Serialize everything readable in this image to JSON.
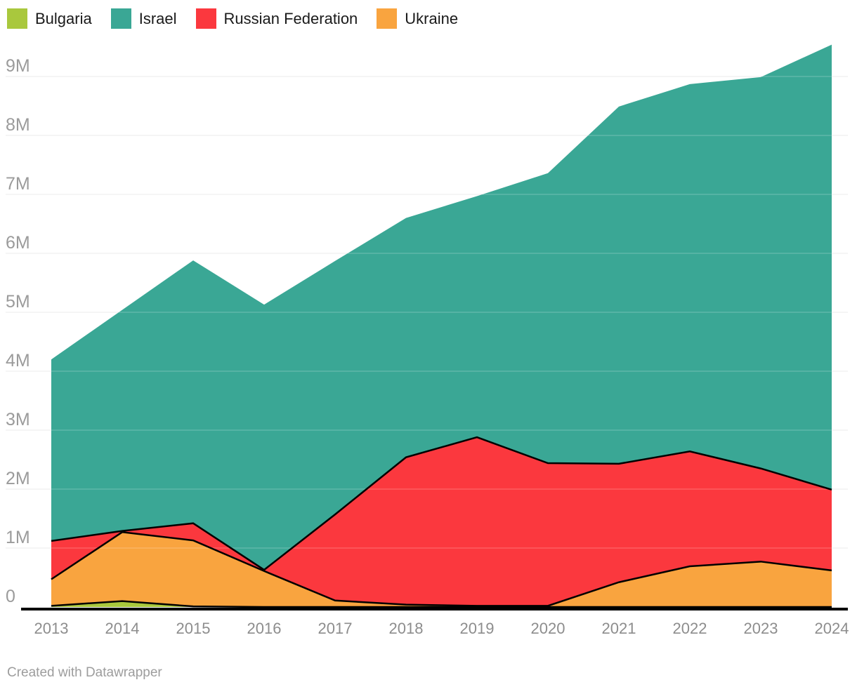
{
  "page": {
    "background": "#ffffff"
  },
  "legend": {
    "items": [
      {
        "label": "Bulgaria",
        "color": "#a9c83d"
      },
      {
        "label": "Israel",
        "color": "#3aa795"
      },
      {
        "label": "Russian Federation",
        "color": "#fb383e"
      },
      {
        "label": "Ukraine",
        "color": "#f9a43f"
      }
    ]
  },
  "footer": {
    "text": "Created with Datawrapper"
  },
  "chart_data": {
    "type": "area",
    "stacked": true,
    "unit": "M",
    "x": [
      2013,
      2014,
      2015,
      2016,
      2017,
      2018,
      2019,
      2020,
      2021,
      2022,
      2023,
      2024
    ],
    "x_tick_labels": [
      "2013",
      "2014",
      "2015",
      "2016",
      "2017",
      "2018",
      "2019",
      "2020",
      "2021",
      "2022",
      "2023",
      "2024"
    ],
    "series": [
      {
        "name": "Bulgaria",
        "color": "#a9c83d",
        "outlined": true,
        "values": [
          0.02,
          0.1,
          0.01,
          0.0,
          0.0,
          0.0,
          0.0,
          0.0,
          0.0,
          0.0,
          0.0,
          0.0
        ]
      },
      {
        "name": "Ukraine",
        "color": "#f9a43f",
        "outlined": true,
        "values": [
          0.45,
          1.17,
          1.12,
          0.61,
          0.11,
          0.04,
          0.02,
          0.02,
          0.42,
          0.69,
          0.77,
          0.62
        ]
      },
      {
        "name": "Russian Federation",
        "color": "#fb383e",
        "outlined": true,
        "values": [
          0.65,
          0.02,
          0.29,
          0.02,
          1.46,
          2.5,
          2.86,
          2.42,
          2.01,
          1.95,
          1.58,
          1.37
        ]
      },
      {
        "name": "Israel",
        "color": "#3aa795",
        "outlined": false,
        "values": [
          3.08,
          3.75,
          4.46,
          4.5,
          4.3,
          4.06,
          4.09,
          4.92,
          6.06,
          6.23,
          6.64,
          7.55
        ]
      }
    ],
    "stack_order_bottom_to_top": [
      "Bulgaria",
      "Ukraine",
      "Russian Federation",
      "Israel"
    ],
    "y_ticks": [
      {
        "value": 0,
        "label": "0"
      },
      {
        "value": 1,
        "label": "1M"
      },
      {
        "value": 2,
        "label": "2M"
      },
      {
        "value": 3,
        "label": "3M"
      },
      {
        "value": 4,
        "label": "4M"
      },
      {
        "value": 5,
        "label": "5M"
      },
      {
        "value": 6,
        "label": "6M"
      },
      {
        "value": 7,
        "label": "7M"
      },
      {
        "value": 8,
        "label": "8M"
      },
      {
        "value": 9,
        "label": "9M"
      }
    ],
    "ylim": [
      0,
      9.6
    ],
    "grid": "horizontal",
    "legend_position": "top",
    "colors": {
      "gridline": "#e4e4e4",
      "gridline_over_area": "#ffffff",
      "outline": "#000000",
      "axis_line": "#000000",
      "y_tick_text": "#9b9b9b",
      "x_tick_text": "#8d8d8d"
    }
  }
}
